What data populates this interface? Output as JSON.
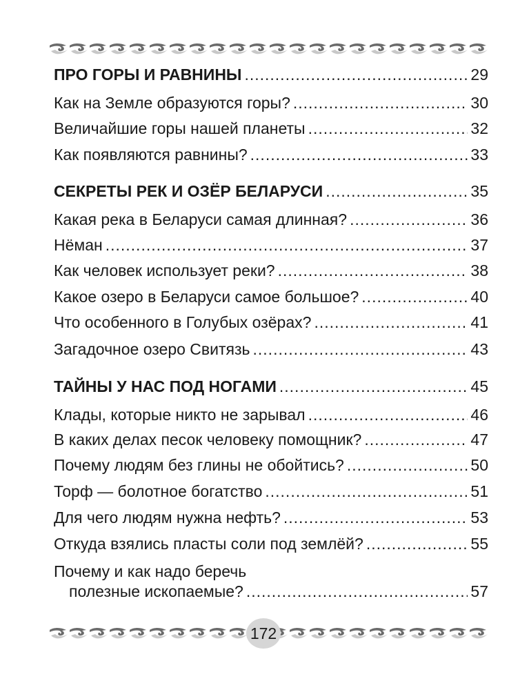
{
  "sections": [
    {
      "title": "ПРО ГОРЫ И РАВНИНЫ",
      "page": "29",
      "items": [
        {
          "title": "Как на Земле образуются горы?",
          "page": "30"
        },
        {
          "title": "Величайшие горы нашей планеты",
          "page": "32"
        },
        {
          "title": "Как появляются равнины?",
          "page": "33"
        }
      ]
    },
    {
      "title": "СЕКРЕТЫ РЕК И ОЗЁР БЕЛАРУСИ",
      "page": "35",
      "items": [
        {
          "title": "Какая река в Беларуси самая длинная?",
          "page": "36"
        },
        {
          "title": "Нёман",
          "page": "37"
        },
        {
          "title": "Как человек использует реки?",
          "page": "38"
        },
        {
          "title": "Какое озеро в Беларуси самое большое?",
          "page": "40"
        },
        {
          "title": "Что особенного в Голубых озёрах?",
          "page": "41"
        },
        {
          "title": "Загадочное озеро Свитязь",
          "page": "43"
        }
      ]
    },
    {
      "title": "ТАЙНЫ У НАС ПОД НОГАМИ",
      "page": "45",
      "items": [
        {
          "title": "Клады, которые никто не зарывал",
          "page": "46"
        },
        {
          "title": "В каких делах песок человеку помощник?",
          "page": "47"
        },
        {
          "title": "Почему людям без глины не обойтись?",
          "page": "50"
        },
        {
          "title": "Торф — болотное богатство",
          "page": "51"
        },
        {
          "title": "Для чего людям нужна нефть?",
          "page": "53"
        },
        {
          "title": "Откуда взялись пласты соли под землёй?",
          "page": "55"
        },
        {
          "title_line1": "Почему и как надо беречь",
          "title_line2": "полезные ископаемые?",
          "page": "57"
        }
      ]
    }
  ],
  "page_number": "172",
  "ornament_colors": {
    "dark": "#6b6b6b",
    "light": "#c8c8c8"
  }
}
